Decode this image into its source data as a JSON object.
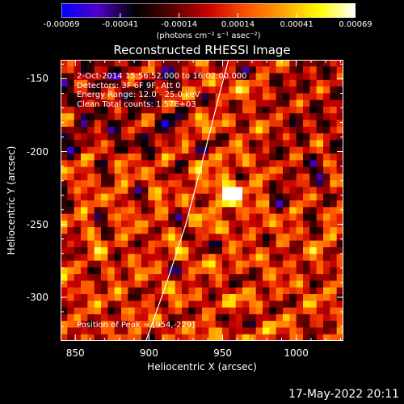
{
  "colorbar": {
    "ticks": [
      "-0.00069",
      "-0.00041",
      "-0.00014",
      "0.00014",
      "0.00041",
      "0.00069"
    ],
    "unit": "(photons cm⁻² s⁻¹ asec⁻²)",
    "stops": [
      "#0000ff",
      "#5000c8",
      "#000000",
      "#5a0000",
      "#c80000",
      "#ff5000",
      "#ffa000",
      "#ffff00",
      "#ffffff"
    ]
  },
  "chart_data": {
    "type": "heatmap",
    "title": "Reconstructed RHESSI Image",
    "xlabel": "Heliocentric X (arcsec)",
    "ylabel": "Heliocentric Y (arcsec)",
    "xlim": [
      840,
      1032
    ],
    "ylim": [
      -330,
      -137
    ],
    "xticks": [
      "850",
      "900",
      "950",
      "1000"
    ],
    "yticks": [
      "-150",
      "-200",
      "-250",
      "-300"
    ],
    "color_range": [
      -0.00069,
      0.00069
    ],
    "peak": [
      954,
      -229
    ],
    "limb_curve": {
      "x": [
        898,
        912,
        925,
        938,
        948,
        954
      ],
      "y": [
        -330,
        -290,
        -250,
        -200,
        -160,
        -137
      ]
    },
    "annotations": [
      "2-Oct-2014 15:56:52.000 to 16:02:00.000",
      "Detectors: 3F 6F 9F, Att 0",
      "Energy Range: 12.0 - 25.0 keV",
      "Clean    Total counts: 1.57E+03"
    ],
    "peak_label": "Position of Peak = [954,-229]"
  },
  "footer": {
    "timestamp": "17-May-2022 20:11"
  }
}
